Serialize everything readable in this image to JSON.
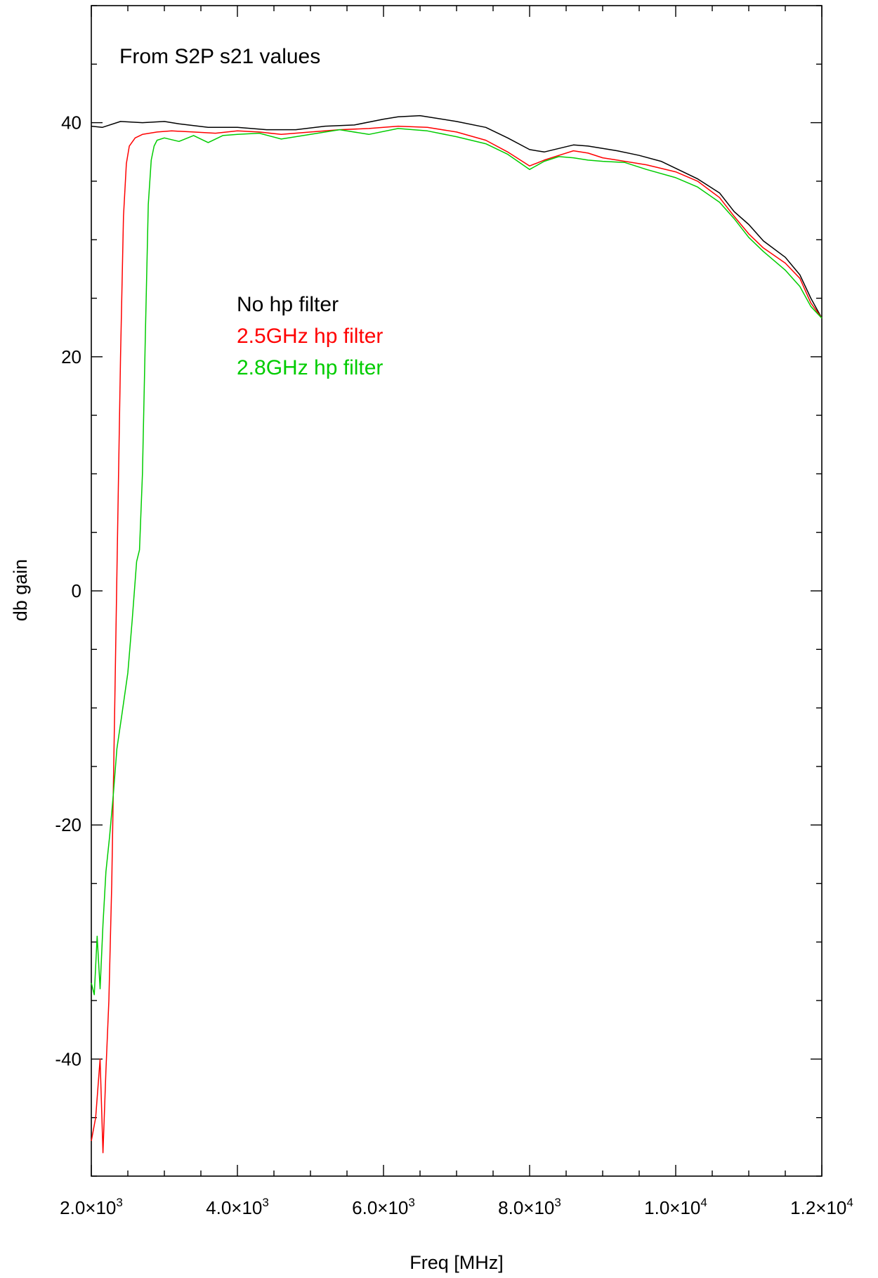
{
  "chart_data": {
    "type": "line",
    "title": "From S2P s21 values",
    "xlabel": "Freq [MHz]",
    "ylabel": "db gain",
    "xlim": [
      2000,
      12000
    ],
    "ylim": [
      -50,
      50
    ],
    "grid": false,
    "legend_position": "upper-left-inside",
    "x_ticks": [
      {
        "value": 2000,
        "mantissa": "2.0",
        "exp": "3"
      },
      {
        "value": 4000,
        "mantissa": "4.0",
        "exp": "3"
      },
      {
        "value": 6000,
        "mantissa": "6.0",
        "exp": "3"
      },
      {
        "value": 8000,
        "mantissa": "8.0",
        "exp": "3"
      },
      {
        "value": 10000,
        "mantissa": "1.0",
        "exp": "4"
      },
      {
        "value": 12000,
        "mantissa": "1.2",
        "exp": "4"
      }
    ],
    "y_ticks": [
      {
        "value": -40,
        "label": "-40"
      },
      {
        "value": -20,
        "label": "-20"
      },
      {
        "value": 0,
        "label": "0"
      },
      {
        "value": 20,
        "label": "20"
      },
      {
        "value": 40,
        "label": "40"
      }
    ],
    "series": [
      {
        "name": "No hp filter",
        "color": "#000000",
        "x": [
          2000,
          2150,
          2400,
          2700,
          3000,
          3200,
          3600,
          4000,
          4400,
          4800,
          5200,
          5600,
          6000,
          6200,
          6500,
          7000,
          7400,
          7700,
          8000,
          8200,
          8400,
          8600,
          8800,
          9000,
          9200,
          9500,
          9800,
          10000,
          10300,
          10600,
          10800,
          11000,
          11200,
          11500,
          11700,
          11850,
          12000
        ],
        "y": [
          39.7,
          39.6,
          40.1,
          40.0,
          40.1,
          39.9,
          39.6,
          39.6,
          39.4,
          39.4,
          39.7,
          39.8,
          40.3,
          40.5,
          40.6,
          40.1,
          39.6,
          38.7,
          37.7,
          37.5,
          37.8,
          38.1,
          38.0,
          37.8,
          37.6,
          37.2,
          36.7,
          36.1,
          35.2,
          34.0,
          32.4,
          31.3,
          29.9,
          28.5,
          27.0,
          25.0,
          23.3
        ]
      },
      {
        "name": "2.5GHz hp filter",
        "color": "#ff0000",
        "x": [
          2000,
          2060,
          2120,
          2160,
          2200,
          2240,
          2280,
          2320,
          2360,
          2400,
          2440,
          2480,
          2520,
          2600,
          2700,
          2900,
          3100,
          3400,
          3700,
          4000,
          4300,
          4600,
          5000,
          5400,
          5800,
          6200,
          6600,
          7000,
          7400,
          7700,
          8000,
          8200,
          8400,
          8600,
          8800,
          9000,
          9200,
          9600,
          10000,
          10300,
          10600,
          10800,
          11000,
          11200,
          11500,
          11700,
          11850,
          12000
        ],
        "y": [
          -47,
          -45,
          -40,
          -48,
          -41,
          -35,
          -25,
          -10,
          5,
          20,
          32,
          36.5,
          38.0,
          38.7,
          39.0,
          39.2,
          39.3,
          39.2,
          39.1,
          39.3,
          39.2,
          39.0,
          39.2,
          39.4,
          39.5,
          39.7,
          39.6,
          39.2,
          38.5,
          37.5,
          36.3,
          36.8,
          37.2,
          37.6,
          37.4,
          37.0,
          36.8,
          36.4,
          35.8,
          35.0,
          33.6,
          32.0,
          30.5,
          29.3,
          28.0,
          26.7,
          24.6,
          23.3
        ]
      },
      {
        "name": "2.8GHz hp filter",
        "color": "#00cc00",
        "x": [
          2000,
          2040,
          2080,
          2120,
          2160,
          2200,
          2250,
          2300,
          2350,
          2420,
          2500,
          2560,
          2620,
          2660,
          2700,
          2740,
          2780,
          2820,
          2860,
          2900,
          3000,
          3200,
          3400,
          3600,
          3800,
          4000,
          4300,
          4600,
          5000,
          5400,
          5800,
          6200,
          6600,
          7000,
          7400,
          7700,
          8000,
          8200,
          8400,
          8600,
          8800,
          9000,
          9300,
          9600,
          10000,
          10300,
          10600,
          10800,
          11000,
          11200,
          11500,
          11700,
          11850,
          12000
        ],
        "y": [
          -33.5,
          -34.5,
          -29.5,
          -34,
          -28.5,
          -24,
          -21,
          -17.5,
          -13.5,
          -10.5,
          -7,
          -2.5,
          2.5,
          3.5,
          10,
          22,
          33,
          36.8,
          38.0,
          38.5,
          38.7,
          38.4,
          38.9,
          38.3,
          38.9,
          39.0,
          39.1,
          38.6,
          39.0,
          39.4,
          39.0,
          39.5,
          39.3,
          38.8,
          38.2,
          37.3,
          36.0,
          36.7,
          37.1,
          37.0,
          36.8,
          36.7,
          36.6,
          36.0,
          35.3,
          34.5,
          33.2,
          31.8,
          30.2,
          29.0,
          27.4,
          26.0,
          24.3,
          23.3
        ]
      }
    ],
    "annotations": [
      {
        "text": "From S2P s21 values",
        "color": "#000000"
      },
      {
        "text": "No hp filter",
        "color": "#000000"
      },
      {
        "text": "2.5GHz hp filter",
        "color": "#ff0000"
      },
      {
        "text": "2.8GHz hp filter",
        "color": "#00cc00"
      }
    ],
    "tick_separator": "×10"
  }
}
